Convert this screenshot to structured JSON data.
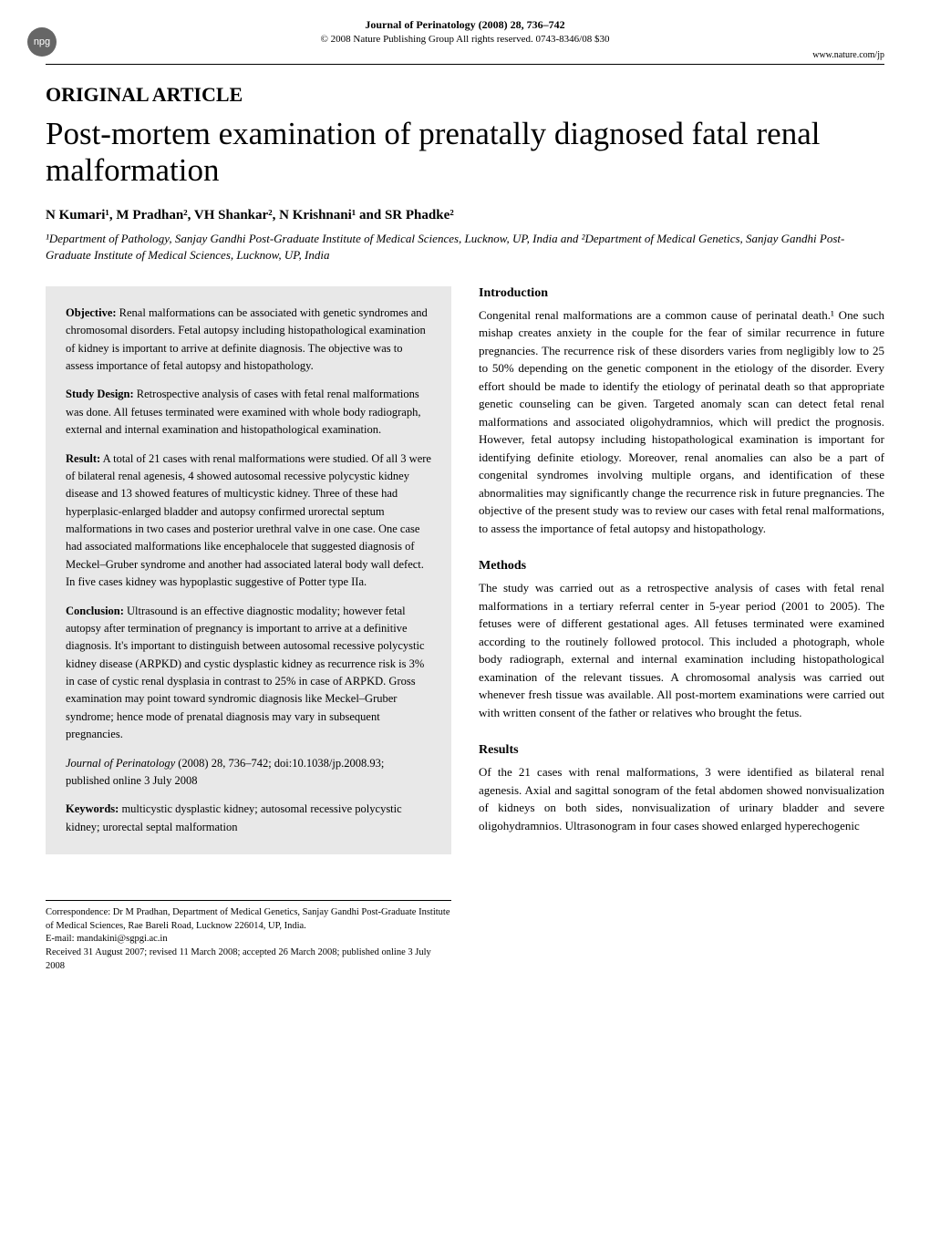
{
  "logo": {
    "text": "npg"
  },
  "header": {
    "journal": "Journal of Perinatology (2008) 28, 736–742",
    "copyright": "© 2008 Nature Publishing Group  All rights reserved. 0743-8346/08 $30",
    "url": "www.nature.com/jp"
  },
  "article": {
    "type": "ORIGINAL ARTICLE",
    "title": "Post-mortem examination of prenatally diagnosed fatal renal malformation",
    "authors": "N Kumari¹, M Pradhan², VH Shankar², N Krishnani¹ and SR Phadke²",
    "affiliations": "¹Department of Pathology, Sanjay Gandhi Post-Graduate Institute of Medical Sciences, Lucknow, UP, India and ²Department of Medical Genetics, Sanjay Gandhi Post-Graduate Institute of Medical Sciences, Lucknow, UP, India"
  },
  "abstract": {
    "objective": {
      "label": "Objective:",
      "text": " Renal malformations can be associated with genetic syndromes and chromosomal disorders. Fetal autopsy including histopathological examination of kidney is important to arrive at definite diagnosis. The objective was to assess importance of fetal autopsy and histopathology."
    },
    "study_design": {
      "label": "Study Design:",
      "text": " Retrospective analysis of cases with fetal renal malformations was done. All fetuses terminated were examined with whole body radiograph, external and internal examination and histopathological examination."
    },
    "result": {
      "label": "Result:",
      "text": " A total of 21 cases with renal malformations were studied. Of all 3 were of bilateral renal agenesis, 4 showed autosomal recessive polycystic kidney disease and 13 showed features of multicystic kidney. Three of these had hyperplasic-enlarged bladder and autopsy confirmed urorectal septum malformations in two cases and posterior urethral valve in one case. One case had associated malformations like encephalocele that suggested diagnosis of Meckel–Gruber syndrome and another had associated lateral body wall defect. In five cases kidney was hypoplastic suggestive of Potter type IIa."
    },
    "conclusion": {
      "label": "Conclusion:",
      "text": " Ultrasound is an effective diagnostic modality; however fetal autopsy after termination of pregnancy is important to arrive at a definitive diagnosis. It's important to distinguish between autosomal recessive polycystic kidney disease (ARPKD) and cystic dysplastic kidney as recurrence risk is 3% in case of cystic renal dysplasia in contrast to 25% in case of ARPKD. Gross examination may point toward syndromic diagnosis like Meckel–Gruber syndrome; hence mode of prenatal diagnosis may vary in subsequent pregnancies."
    },
    "citation": {
      "journal": "Journal of Perinatology",
      "rest": " (2008) 28, 736–742; doi:10.1038/jp.2008.93; published online 3 July 2008"
    },
    "keywords": {
      "label": "Keywords:",
      "text": " multicystic dysplastic kidney; autosomal recessive polycystic kidney; urorectal septal malformation"
    }
  },
  "sections": {
    "introduction": {
      "heading": "Introduction",
      "text": "Congenital renal malformations are a common cause of perinatal death.¹ One such mishap creates anxiety in the couple for the fear of similar recurrence in future pregnancies. The recurrence risk of these disorders varies from negligibly low to 25 to 50% depending on the genetic component in the etiology of the disorder. Every effort should be made to identify the etiology of perinatal death so that appropriate genetic counseling can be given. Targeted anomaly scan can detect fetal renal malformations and associated oligohydramnios, which will predict the prognosis. However, fetal autopsy including histopathological examination is important for identifying definite etiology. Moreover, renal anomalies can also be a part of congenital syndromes involving multiple organs, and identification of these abnormalities may significantly change the recurrence risk in future pregnancies. The objective of the present study was to review our cases with fetal renal malformations, to assess the importance of fetal autopsy and histopathology."
    },
    "methods": {
      "heading": "Methods",
      "text": "The study was carried out as a retrospective analysis of cases with fetal renal malformations in a tertiary referral center in 5-year period (2001 to 2005). The fetuses were of different gestational ages. All fetuses terminated were examined according to the routinely followed protocol. This included a photograph, whole body radiograph, external and internal examination including histopathological examination of the relevant tissues. A chromosomal analysis was carried out whenever fresh tissue was available. All post-mortem examinations were carried out with written consent of the father or relatives who brought the fetus."
    },
    "results": {
      "heading": "Results",
      "text": "Of the 21 cases with renal malformations, 3 were identified as bilateral renal agenesis. Axial and sagittal sonogram of the fetal abdomen showed nonvisualization of kidneys on both sides, nonvisualization of urinary bladder and severe oligohydramnios. Ultrasonogram in four cases showed enlarged hyperechogenic"
    }
  },
  "correspondence": {
    "line1": "Correspondence: Dr M Pradhan, Department of Medical Genetics, Sanjay Gandhi Post-Graduate Institute of Medical Sciences, Rae Bareli Road, Lucknow 226014, UP, India.",
    "line2": "E-mail: mandakini@sgpgi.ac.in",
    "line3": "Received 31 August 2007; revised 11 March 2008; accepted 26 March 2008; published online 3 July 2008"
  }
}
